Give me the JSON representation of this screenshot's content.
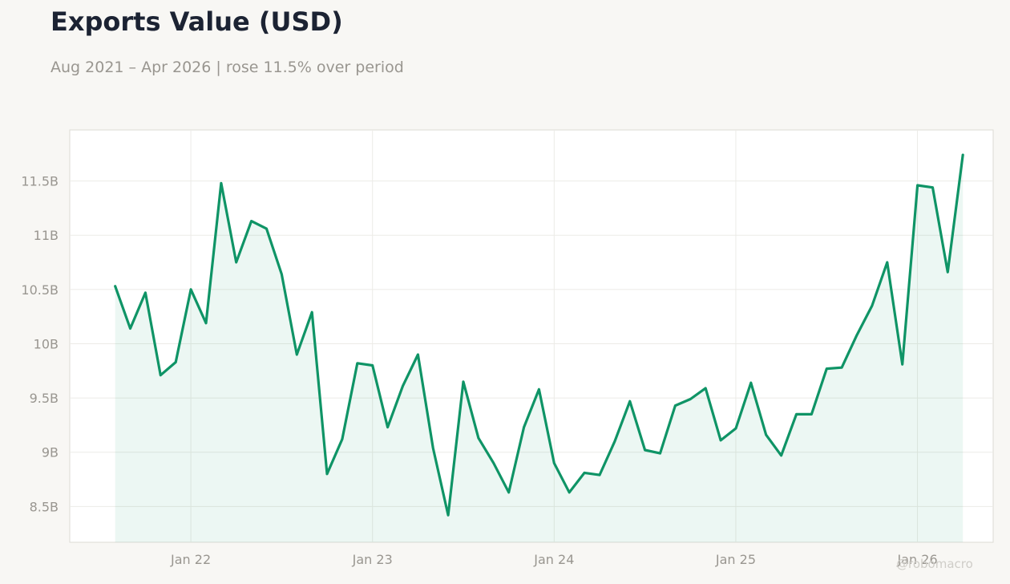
{
  "header": {
    "title": "Exports Value (USD)",
    "subtitle": "Aug 2021 – Apr 2026 | rose 11.5% over period"
  },
  "watermark": "@robomacro",
  "colors": {
    "line": "#0f9466",
    "fill": "#0f9466",
    "grid": "#ecebe7",
    "axis_text": "#999690",
    "frame": "#dddbd5",
    "plot_bg": "#ffffff",
    "page_bg": "#f8f7f4"
  },
  "chart_data": {
    "type": "area",
    "title": "Exports Value (USD)",
    "subtitle": "Aug 2021 – Apr 2026 | rose 11.5% over period",
    "xlabel": "",
    "ylabel": "",
    "x_ticks": [
      "Jan 22",
      "Jan 23",
      "Jan 24",
      "Jan 25",
      "Jan 26"
    ],
    "y_ticks": [
      "8.5B",
      "9B",
      "9.5B",
      "10B",
      "10.5B",
      "11B",
      "11.5B"
    ],
    "y_tick_values": [
      8.5,
      9.0,
      9.5,
      10.0,
      10.5,
      11.0,
      11.5
    ],
    "ylim": [
      8.17,
      11.97
    ],
    "xlim": [
      "2021-05",
      "2026-06"
    ],
    "grid": true,
    "unit": "B USD",
    "series": [
      {
        "x": [
          "2021-08",
          "2021-09",
          "2021-10",
          "2021-11",
          "2021-12",
          "2022-01",
          "2022-02",
          "2022-03",
          "2022-04",
          "2022-05",
          "2022-06",
          "2022-07",
          "2022-08",
          "2022-09",
          "2022-10",
          "2022-11",
          "2022-12",
          "2023-01",
          "2023-02",
          "2023-03",
          "2023-04",
          "2023-05",
          "2023-06",
          "2023-07",
          "2023-08",
          "2023-09",
          "2023-10",
          "2023-11",
          "2023-12",
          "2024-01",
          "2024-02",
          "2024-03",
          "2024-04",
          "2024-05",
          "2024-06",
          "2024-07",
          "2024-08",
          "2024-09",
          "2024-10",
          "2024-11",
          "2024-12",
          "2025-01",
          "2025-02",
          "2025-03",
          "2025-04",
          "2025-05",
          "2025-06",
          "2025-07",
          "2025-08",
          "2025-09",
          "2025-10",
          "2025-11",
          "2025-12",
          "2026-01",
          "2026-02",
          "2026-03",
          "2026-04"
        ],
        "values": [
          10.53,
          10.14,
          10.47,
          9.71,
          9.83,
          10.5,
          10.19,
          11.48,
          10.75,
          11.13,
          11.06,
          10.64,
          9.9,
          10.29,
          8.8,
          9.12,
          9.82,
          9.8,
          9.23,
          9.61,
          9.9,
          9.04,
          8.42,
          9.65,
          9.13,
          8.9,
          8.63,
          9.23,
          9.58,
          8.9,
          8.63,
          8.81,
          8.79,
          9.1,
          9.47,
          9.02,
          8.99,
          9.43,
          9.49,
          9.59,
          9.11,
          9.22,
          9.64,
          9.16,
          8.97,
          9.35,
          9.35,
          9.77,
          9.78,
          10.08,
          10.35,
          10.75,
          9.81,
          11.46,
          11.44,
          10.66,
          11.74
        ]
      }
    ]
  }
}
